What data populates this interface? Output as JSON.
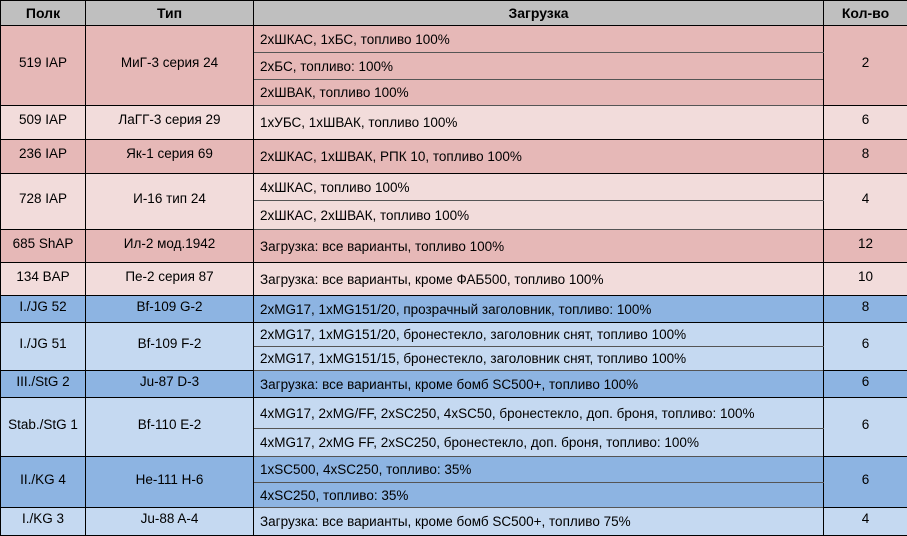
{
  "colors": {
    "header": "#bfbfbf",
    "red_dark": "#e6b8b7",
    "red_light": "#f2dcdb",
    "blue_dark": "#8db4e2",
    "blue_light": "#c5d9f1"
  },
  "headers": [
    "Полк",
    "Тип",
    "Загрузка",
    "Кол-во"
  ],
  "rows": [
    {
      "regiment": "519 IAP",
      "type": "МиГ-3 серия 24",
      "loads": [
        "2хШКАС, 1хБС, топливо 100%",
        "2хБС, топливо: 100%",
        "2хШВАК, топливо 100%"
      ],
      "count": "2",
      "shade": "red_dark"
    },
    {
      "regiment": "509 IAP",
      "type": "ЛаГГ-3 серия 29",
      "loads": [
        "1хУБС, 1хШВАК, топливо 100%"
      ],
      "count": "6",
      "shade": "red_light"
    },
    {
      "regiment": "236 IAP",
      "type": "Як-1 серия 69",
      "loads": [
        "2хШКАС, 1хШВАК, РПК 10, топливо 100%"
      ],
      "count": "8",
      "shade": "red_dark"
    },
    {
      "regiment": "728 IAP",
      "type": "И-16 тип 24",
      "loads": [
        "4хШКАС,  топливо 100%",
        "2хШКАС, 2хШВАК, топливо 100%"
      ],
      "count": "4",
      "shade": "red_light"
    },
    {
      "regiment": "685 ShAP",
      "type": "Ил-2 мод.1942",
      "loads": [
        "Загрузка: все варианты, топливо 100%"
      ],
      "count": "12",
      "shade": "red_dark"
    },
    {
      "regiment": "134 BAP",
      "type": "Пе-2 серия 87",
      "loads": [
        "Загрузка: все варианты, кроме ФАБ500, топливо 100%"
      ],
      "count": "10",
      "shade": "red_light"
    },
    {
      "regiment": "I./JG 52",
      "type": "Bf-109 G-2",
      "loads": [
        "2xMG17, 1xMG151/20, прозрачный заголовник, топливо: 100%"
      ],
      "count": "8",
      "shade": "blue_dark"
    },
    {
      "regiment": "I./JG 51",
      "type": "Bf-109 F-2",
      "loads": [
        "2xMG17, 1xMG151/20, бронестекло, заголовник снят, топливо 100%",
        "2xMG17, 1xMG151/15, бронестекло, заголовник снят, топливо 100%"
      ],
      "count": "6",
      "shade": "blue_light"
    },
    {
      "regiment": "III./StG 2",
      "type": "Ju-87 D-3",
      "loads": [
        "Загрузка: все варианты, кроме бомб SC500+, топливо 100%"
      ],
      "count": "6",
      "shade": "blue_dark"
    },
    {
      "regiment": "Stab./StG 1",
      "type": "Bf-110 E-2",
      "loads": [
        "4xMG17, 2xMG/FF, 2xSC250, 4xSC50, бронестекло, доп. броня, топливо: 100%",
        "4xMG17, 2xMG FF, 2xSC250, бронестекло, доп. броня, топливо: 100%"
      ],
      "count": "6",
      "shade": "blue_light"
    },
    {
      "regiment": "II./KG 4",
      "type": "He-111 H-6",
      "loads": [
        "1xSC500, 4xSC250, топливо: 35%",
        "4xSC250, топливо: 35%"
      ],
      "count": "6",
      "shade": "blue_dark"
    },
    {
      "regiment": "I./KG 3",
      "type": "Ju-88 A-4",
      "loads": [
        "Загрузка: все варианты, кроме бомб SC500+, топливо 75%"
      ],
      "count": "4",
      "shade": "blue_light"
    }
  ]
}
